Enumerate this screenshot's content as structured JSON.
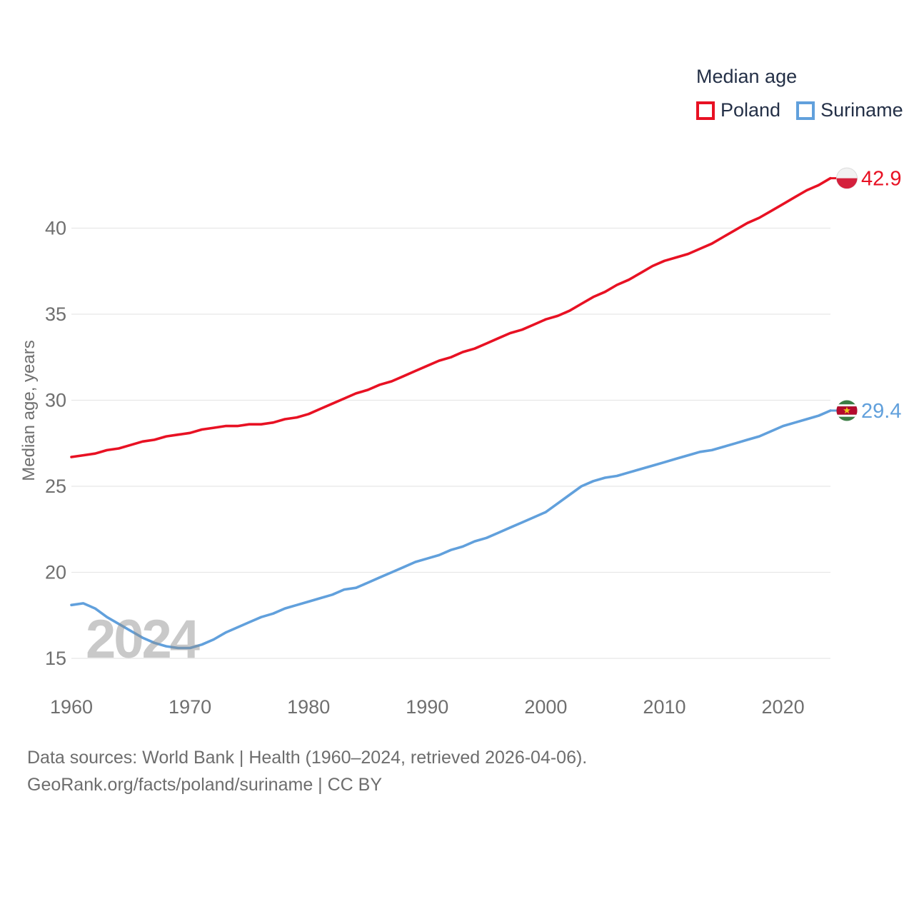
{
  "legend": {
    "title": "Median age",
    "items": [
      {
        "label": "Poland",
        "color": "#e81123"
      },
      {
        "label": "Suriname",
        "color": "#61a0dc"
      }
    ]
  },
  "footer": {
    "line1": "Data sources: World Bank | Health (1960–2024, retrieved 2026-04-06).",
    "line2": "GeoRank.org/facts/poland/suriname | CC BY"
  },
  "chart_data": {
    "type": "line",
    "title": "Median age",
    "xlabel": "",
    "ylabel": "Median age, years",
    "xlim": [
      1960,
      2024
    ],
    "ylim": [
      15,
      40
    ],
    "x_ticks": [
      1960,
      1970,
      1980,
      1990,
      2000,
      2010,
      2020
    ],
    "y_ticks": [
      15,
      20,
      25,
      30,
      35,
      40
    ],
    "grid": true,
    "legend_position": "top-right",
    "watermark": "2024",
    "tick_color": "#6f6f6f",
    "grid_color": "#e7e7e7",
    "x": [
      1960,
      1961,
      1962,
      1963,
      1964,
      1965,
      1966,
      1967,
      1968,
      1969,
      1970,
      1971,
      1972,
      1973,
      1974,
      1975,
      1976,
      1977,
      1978,
      1979,
      1980,
      1981,
      1982,
      1983,
      1984,
      1985,
      1986,
      1987,
      1988,
      1989,
      1990,
      1991,
      1992,
      1993,
      1994,
      1995,
      1996,
      1997,
      1998,
      1999,
      2000,
      2001,
      2002,
      2003,
      2004,
      2005,
      2006,
      2007,
      2008,
      2009,
      2010,
      2011,
      2012,
      2013,
      2014,
      2015,
      2016,
      2017,
      2018,
      2019,
      2020,
      2021,
      2022,
      2023,
      2024
    ],
    "series": [
      {
        "name": "Poland",
        "color": "#e81123",
        "end_label": "42.9",
        "flag_icon": "poland-flag-icon",
        "flag_colors": {
          "top": "#f2f2f2",
          "bottom": "#d4213d",
          "ring": "#dcdcdc"
        },
        "values": [
          26.7,
          26.8,
          26.9,
          27.1,
          27.2,
          27.4,
          27.6,
          27.7,
          27.9,
          28.0,
          28.1,
          28.3,
          28.4,
          28.5,
          28.5,
          28.6,
          28.6,
          28.7,
          28.9,
          29.0,
          29.2,
          29.5,
          29.8,
          30.1,
          30.4,
          30.6,
          30.9,
          31.1,
          31.4,
          31.7,
          32.0,
          32.3,
          32.5,
          32.8,
          33.0,
          33.3,
          33.6,
          33.9,
          34.1,
          34.4,
          34.7,
          34.9,
          35.2,
          35.6,
          36.0,
          36.3,
          36.7,
          37.0,
          37.4,
          37.8,
          38.1,
          38.3,
          38.5,
          38.8,
          39.1,
          39.5,
          39.9,
          40.3,
          40.6,
          41.0,
          41.4,
          41.8,
          42.2,
          42.5,
          42.9
        ]
      },
      {
        "name": "Suriname",
        "color": "#61a0dc",
        "end_label": "29.4",
        "flag_icon": "suriname-flag-icon",
        "flag_colors": {
          "green": "#3a7d44",
          "white": "#ffffff",
          "red": "#b40a2d",
          "star": "#ecc81d"
        },
        "values": [
          18.1,
          18.2,
          17.9,
          17.4,
          17.0,
          16.6,
          16.2,
          15.9,
          15.7,
          15.6,
          15.6,
          15.8,
          16.1,
          16.5,
          16.8,
          17.1,
          17.4,
          17.6,
          17.9,
          18.1,
          18.3,
          18.5,
          18.7,
          19.0,
          19.1,
          19.4,
          19.7,
          20.0,
          20.3,
          20.6,
          20.8,
          21.0,
          21.3,
          21.5,
          21.8,
          22.0,
          22.3,
          22.6,
          22.9,
          23.2,
          23.5,
          24.0,
          24.5,
          25.0,
          25.3,
          25.5,
          25.6,
          25.8,
          26.0,
          26.2,
          26.4,
          26.6,
          26.8,
          27.0,
          27.1,
          27.3,
          27.5,
          27.7,
          27.9,
          28.2,
          28.5,
          28.7,
          28.9,
          29.1,
          29.4
        ]
      }
    ]
  }
}
